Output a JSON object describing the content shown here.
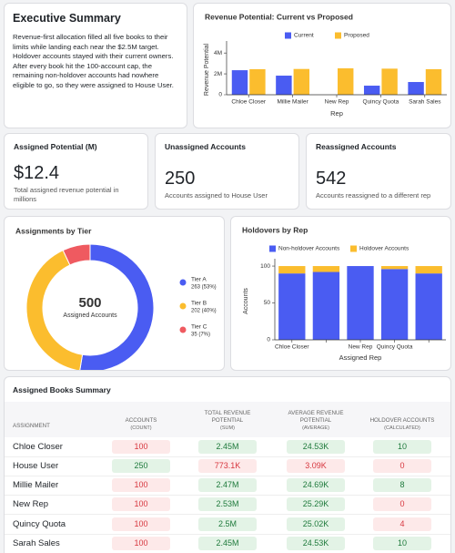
{
  "summary": {
    "title": "Executive Summary",
    "text": "Revenue-first allocation filled all five books to their limits while landing each near the $2.5M target. Holdover accounts stayed with their current owners. After every book hit the 100-account cap, the remaining non-holdover accounts had nowhere eligible to go, so they were assigned to House User."
  },
  "chart_data": [
    {
      "type": "bar",
      "title": "Revenue Potential: Current vs Proposed",
      "x_label": "Rep",
      "y_label": "Revenue Potential",
      "categories": [
        "Chloe Closer",
        "Millie Mailer",
        "New Rep",
        "Quincy Quota",
        "Sarah Sales"
      ],
      "series": [
        {
          "name": "Current",
          "color": "#4a5cf2",
          "values": [
            2350000,
            1830000,
            0,
            870000,
            1220000
          ]
        },
        {
          "name": "Proposed",
          "color": "#fbbd2e",
          "values": [
            2450000,
            2470000,
            2530000,
            2500000,
            2450000
          ]
        }
      ],
      "ylim": [
        0,
        4800000
      ],
      "yticks": [
        0,
        {
          "value": 2000000,
          "label": "2M"
        },
        {
          "value": 4000000,
          "label": "4M"
        }
      ],
      "stacked": false
    },
    {
      "type": "donut",
      "title": "Assignments by Tier",
      "center_value": 500,
      "center_label": "Assigned Accounts",
      "categories": [
        "Tier A",
        "Tier B",
        "Tier C"
      ],
      "values": [
        263,
        202,
        35
      ],
      "value_labels": [
        "263 (53%)",
        "202 (40%)",
        "35 (7%)"
      ],
      "colors": [
        "#4a5cf2",
        "#fbbd2e",
        "#ef5a60"
      ]
    },
    {
      "type": "bar",
      "title": "Holdovers by Rep",
      "x_label": "Assigned Rep",
      "y_label": "Accounts",
      "categories": [
        "Chloe Closer",
        null,
        "New Rep",
        "Quincy Quota",
        null
      ],
      "series": [
        {
          "name": "Non-holdover Accounts",
          "color": "#4a5cf2",
          "values": [
            90,
            92,
            100,
            96,
            90
          ]
        },
        {
          "name": "Holdover Accounts",
          "color": "#fbbd2e",
          "values": [
            10,
            8,
            0,
            4,
            10
          ]
        }
      ],
      "ylim": [
        0,
        105
      ],
      "yticks": [
        0,
        50,
        100
      ],
      "stacked": true
    }
  ],
  "kpis": [
    {
      "title": "Assigned Potential (M)",
      "value": "$12.4",
      "caption": "Total assigned revenue potential in millions"
    },
    {
      "title": "Unassigned Accounts",
      "value": 250,
      "caption": "Accounts assigned to House User"
    },
    {
      "title": "Reassigned Accounts",
      "value": 542,
      "caption": "Accounts reassigned to a different rep"
    }
  ],
  "table": {
    "title": "Assigned Books Summary",
    "headers": [
      "ASSIGNMENT",
      "ACCOUNTS",
      "TOTAL REVENUE POTENTIAL",
      "AVERAGE REVENUE POTENTIAL",
      "HOLDOVER ACCOUNTS"
    ],
    "subheaders": [
      null,
      "(COUNT)",
      "(SUM)",
      "(AVERAGE)",
      "(CALCULATED)"
    ],
    "rows": [
      [
        "Chloe Closer",
        "100",
        "2.45M",
        "24.53K",
        "10"
      ],
      [
        "House User",
        "250",
        "773.1K",
        "3.09K",
        "0"
      ],
      [
        "Millie Mailer",
        "100",
        "2.47M",
        "24.69K",
        "8"
      ],
      [
        "New Rep",
        "100",
        "2.53M",
        "25.29K",
        "0"
      ],
      [
        "Quincy Quota",
        "100",
        "2.5M",
        "25.02K",
        "4"
      ],
      [
        "Sarah Sales",
        "100",
        "2.45M",
        "24.53K",
        "10"
      ]
    ],
    "cell_colors": [
      [
        null,
        "#fde9e9",
        "#e3f3e6",
        "#e3f3e6",
        "#e3f3e6"
      ],
      [
        null,
        "#e3f3e6",
        "#fde9e9",
        "#fde9e9",
        "#fde9e9"
      ],
      [
        null,
        "#fde9e9",
        "#e3f3e6",
        "#e3f3e6",
        "#e3f3e6"
      ],
      [
        null,
        "#fde9e9",
        "#e3f3e6",
        "#e3f3e6",
        "#fde9e9"
      ],
      [
        null,
        "#fde9e9",
        "#e3f3e6",
        "#e3f3e6",
        "#fde9e9"
      ],
      [
        null,
        "#fde9e9",
        "#e3f3e6",
        "#e3f3e6",
        "#e3f3e6"
      ]
    ]
  }
}
